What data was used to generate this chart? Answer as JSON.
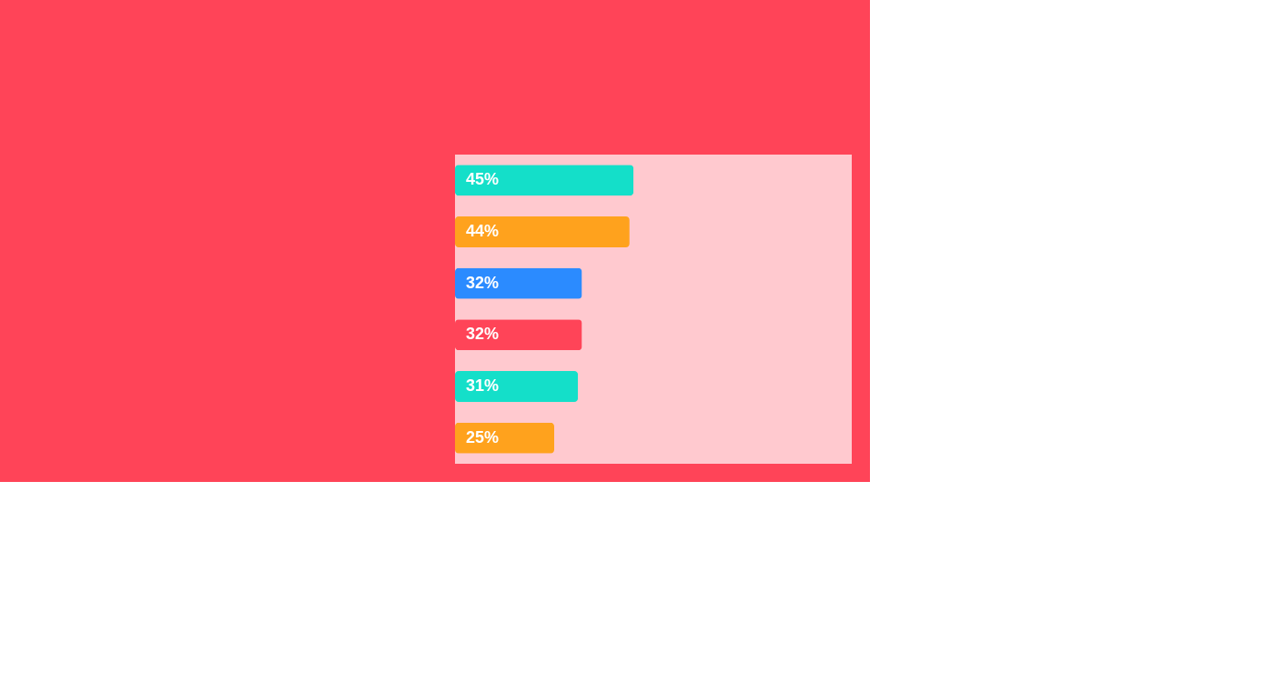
{
  "chart_data": {
    "type": "bar",
    "orientation": "horizontal",
    "categories": [
      null,
      null,
      null,
      null,
      null,
      null
    ],
    "values": [
      45,
      44,
      32,
      32,
      31,
      25
    ],
    "value_labels": [
      "45%",
      "44%",
      "32%",
      "32%",
      "31%",
      "25%"
    ],
    "colors": [
      "#14dfc9",
      "#ffa21d",
      "#2b8bff",
      "#ff4458",
      "#14dfc9",
      "#ffa21d"
    ],
    "xlim": [
      0,
      100
    ],
    "tick_labels": false,
    "grid": false
  }
}
